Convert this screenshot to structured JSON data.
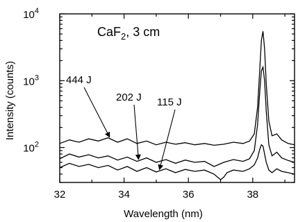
{
  "chart_data": {
    "type": "line",
    "title": "",
    "xlabel": "Wavelength (nm)",
    "ylabel": "Intensity (counts)",
    "xlim": [
      32,
      39.3
    ],
    "ylim": [
      30,
      10000
    ],
    "y_scale": "log",
    "panel_label": {
      "main": "CaF",
      "sub": "2",
      "rest": ", 3 cm"
    },
    "x_ticks": [
      32,
      34,
      36,
      38
    ],
    "x_tick_labels": [
      "32",
      "34",
      "36",
      "38"
    ],
    "y_ticks": [
      {
        "value": 100,
        "base": "10",
        "exp": "2"
      },
      {
        "value": 1000,
        "base": "10",
        "exp": "3"
      },
      {
        "value": 10000,
        "base": "10",
        "exp": "4"
      }
    ],
    "series": [
      {
        "name": "444 J",
        "x": [
          32.0,
          32.3,
          32.6,
          32.9,
          33.2,
          33.5,
          33.8,
          34.1,
          34.4,
          34.7,
          35.0,
          35.3,
          35.6,
          35.9,
          36.2,
          36.5,
          36.8,
          37.1,
          37.4,
          37.7,
          37.9,
          38.05,
          38.15,
          38.22,
          38.27,
          38.32,
          38.37,
          38.42,
          38.5,
          38.6,
          38.75,
          38.9,
          39.1,
          39.3
        ],
        "y": [
          115,
          130,
          120,
          135,
          125,
          140,
          120,
          135,
          115,
          125,
          110,
          120,
          112,
          118,
          110,
          115,
          108,
          112,
          120,
          115,
          125,
          160,
          400,
          1500,
          4000,
          5500,
          3000,
          900,
          250,
          150,
          160,
          130,
          115,
          110
        ]
      },
      {
        "name": "202 J",
        "x": [
          32.0,
          32.3,
          32.6,
          32.9,
          33.2,
          33.5,
          33.8,
          34.1,
          34.4,
          34.7,
          35.0,
          35.3,
          35.6,
          35.9,
          36.2,
          36.5,
          36.8,
          37.1,
          37.4,
          37.7,
          37.9,
          38.05,
          38.15,
          38.22,
          38.27,
          38.32,
          38.37,
          38.42,
          38.5,
          38.6,
          38.75,
          38.9,
          39.1,
          39.3
        ],
        "y": [
          68,
          80,
          72,
          78,
          70,
          75,
          65,
          72,
          62,
          70,
          60,
          66,
          58,
          65,
          60,
          62,
          52,
          60,
          66,
          62,
          68,
          90,
          220,
          700,
          1400,
          1600,
          1000,
          350,
          110,
          75,
          85,
          70,
          64,
          60
        ]
      },
      {
        "name": "115 J",
        "x": [
          32.0,
          32.3,
          32.6,
          32.9,
          33.2,
          33.5,
          33.8,
          34.1,
          34.4,
          34.7,
          35.0,
          35.3,
          35.6,
          35.9,
          36.2,
          36.5,
          36.8,
          37.0,
          37.1,
          37.2,
          37.4,
          37.7,
          37.9,
          38.05,
          38.15,
          38.22,
          38.27,
          38.32,
          38.37,
          38.42,
          38.5,
          38.6,
          38.75,
          38.9,
          39.1,
          39.3
        ],
        "y": [
          50,
          58,
          52,
          56,
          50,
          54,
          46,
          52,
          44,
          50,
          43,
          48,
          42,
          47,
          44,
          46,
          40,
          33,
          36,
          42,
          46,
          44,
          48,
          55,
          70,
          95,
          110,
          105,
          80,
          60,
          46,
          42,
          48,
          44,
          42,
          40
        ]
      }
    ],
    "annotations": [
      {
        "text": "444 J",
        "series": "444 J",
        "at_x": 33.55
      },
      {
        "text": "202 J",
        "series": "202 J",
        "at_x": 34.45
      },
      {
        "text": "115 J",
        "series": "115 J",
        "at_x": 35.1
      }
    ]
  }
}
